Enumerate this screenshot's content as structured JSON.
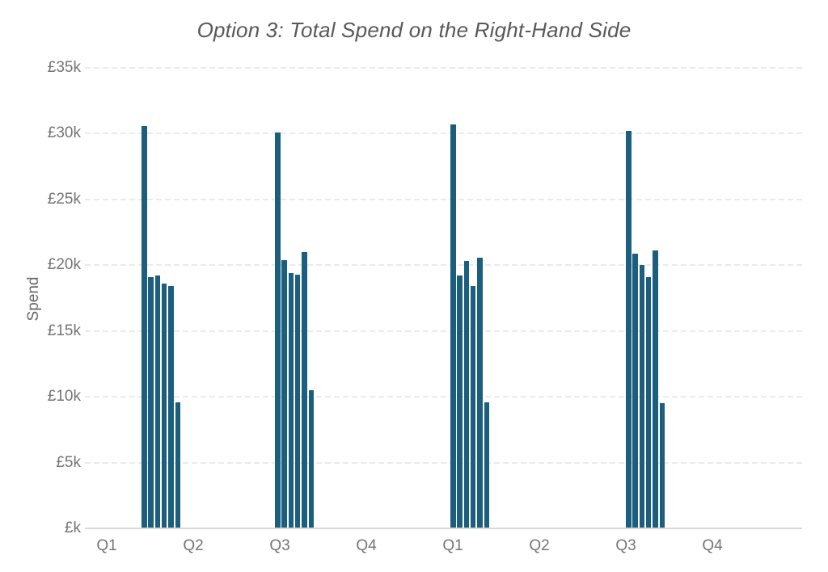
{
  "chart_data": {
    "type": "bar",
    "title": "Option 3: Total Spend on the Right-Hand Side",
    "ylabel": "Spend",
    "xlabel": "",
    "ylim": [
      0,
      35000
    ],
    "grid": "dashed-horizontal",
    "legend": "none",
    "bar_color": "#1b5e7e",
    "axis_line_color": "#d9d9d9",
    "gridline_color": "#ebebeb",
    "title_color": "#595959",
    "tick_label_color": "#757575",
    "y_ticks": [
      {
        "value": 35000,
        "label": "£35k"
      },
      {
        "value": 30000,
        "label": "£30k"
      },
      {
        "value": 25000,
        "label": "£25k"
      },
      {
        "value": 20000,
        "label": "£20k"
      },
      {
        "value": 15000,
        "label": "£15k"
      },
      {
        "value": 10000,
        "label": "£10k"
      },
      {
        "value": 5000,
        "label": "£5k"
      },
      {
        "value": 0,
        "label": "£k"
      }
    ],
    "x_ticks": [
      "Q1",
      "Q2",
      "Q3",
      "Q4",
      "Q1",
      "Q2",
      "Q3",
      "Q4"
    ],
    "groups": [
      {
        "quarter": "Q1",
        "year_index": 1,
        "values": [
          30600,
          19100,
          19200,
          18600,
          18400,
          9600
        ]
      },
      {
        "quarter": "Q3",
        "year_index": 1,
        "values": [
          30100,
          20400,
          19400,
          19300,
          21000,
          10500
        ]
      },
      {
        "quarter": "Q1",
        "year_index": 2,
        "values": [
          30700,
          19200,
          20300,
          18400,
          20600,
          9600
        ]
      },
      {
        "quarter": "Q3",
        "year_index": 2,
        "values": [
          30200,
          20900,
          20000,
          19100,
          21100,
          9500
        ]
      }
    ]
  }
}
